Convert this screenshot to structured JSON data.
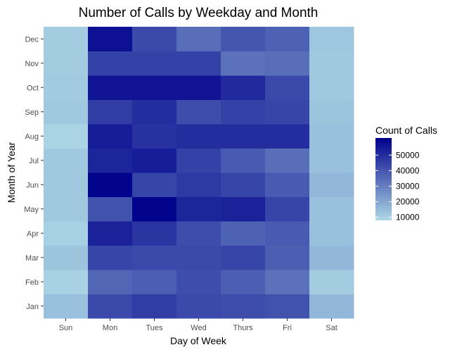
{
  "chart_data": {
    "type": "heatmap",
    "title": "Number of Calls by Weekday and Month",
    "xlabel": "Day of Week",
    "ylabel": "Month of Year",
    "x": [
      "Sun",
      "Mon",
      "Tues",
      "Wed",
      "Thurs",
      "Fri",
      "Sat"
    ],
    "y": [
      "Jan",
      "Feb",
      "Mar",
      "Apr",
      "May",
      "Jun",
      "Jul",
      "Aug",
      "Sep",
      "Oct",
      "Nov",
      "Dec"
    ],
    "values": [
      [
        14000,
        43000,
        46000,
        43000,
        42000,
        41000,
        16000
      ],
      [
        9500,
        36000,
        38000,
        42000,
        38000,
        33000,
        11000
      ],
      [
        13000,
        44000,
        43000,
        43000,
        44000,
        38000,
        16000
      ],
      [
        10000,
        53000,
        48000,
        42000,
        37000,
        39000,
        14000
      ],
      [
        12000,
        41000,
        60000,
        52000,
        53000,
        44000,
        14000
      ],
      [
        12000,
        60000,
        44000,
        47000,
        44000,
        39000,
        16000
      ],
      [
        12000,
        52000,
        54000,
        45000,
        39000,
        34000,
        14000
      ],
      [
        9000,
        54000,
        49000,
        50000,
        50000,
        50000,
        14000
      ],
      [
        12000,
        46000,
        50000,
        42000,
        45000,
        44000,
        13000
      ],
      [
        11500,
        56000,
        56000,
        56000,
        51000,
        43000,
        12000
      ],
      [
        11000,
        45000,
        45000,
        45000,
        33000,
        34000,
        12000
      ],
      [
        11000,
        57000,
        43000,
        34000,
        40000,
        37000,
        12500
      ]
    ],
    "legend": {
      "title": "Count of Calls",
      "ticks": [
        10000,
        20000,
        30000,
        40000,
        50000
      ],
      "range": [
        8000,
        61000
      ],
      "position": "right"
    },
    "colors": {
      "low": "#add8e6",
      "high": "#00008b"
    },
    "grid": true
  }
}
